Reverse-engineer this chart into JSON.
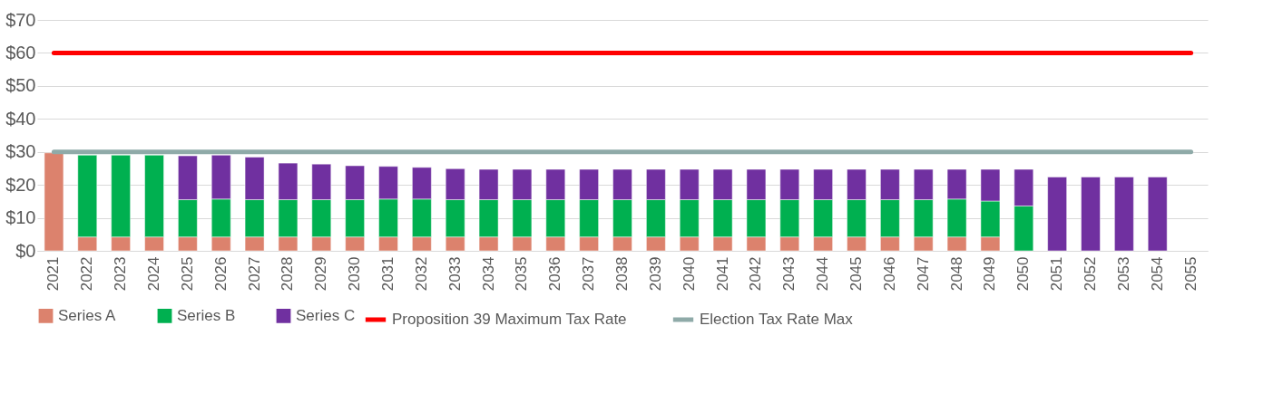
{
  "chart_data": {
    "type": "bar",
    "stacked": true,
    "categories": [
      "2021",
      "2022",
      "2023",
      "2024",
      "2025",
      "2026",
      "2027",
      "2028",
      "2029",
      "2030",
      "2031",
      "2032",
      "2033",
      "2034",
      "2035",
      "2036",
      "2037",
      "2038",
      "2039",
      "2040",
      "2041",
      "2042",
      "2043",
      "2044",
      "2045",
      "2046",
      "2047",
      "2048",
      "2049",
      "2050",
      "2051",
      "2052",
      "2053",
      "2054",
      "2055"
    ],
    "series": [
      {
        "name": "Series A",
        "color": "#dc826d",
        "values": [
          29.7,
          4.2,
          4.2,
          4.2,
          4.2,
          4.2,
          4.2,
          4.2,
          4.2,
          4.2,
          4.2,
          4.2,
          4.2,
          4.2,
          4.2,
          4.2,
          4.2,
          4.2,
          4.2,
          4.2,
          4.2,
          4.2,
          4.2,
          4.2,
          4.2,
          4.2,
          4.2,
          4.2,
          4.2,
          null,
          null,
          null,
          null,
          null,
          null
        ]
      },
      {
        "name": "Series B",
        "color": "#00b050",
        "values": [
          null,
          24.8,
          24.8,
          24.8,
          11.3,
          11.5,
          11.3,
          11.3,
          11.3,
          11.3,
          11.5,
          11.5,
          11.3,
          11.3,
          11.3,
          11.3,
          11.3,
          11.3,
          11.3,
          11.3,
          11.3,
          11.3,
          11.3,
          11.3,
          11.3,
          11.3,
          11.3,
          11.5,
          10.9,
          13.6,
          null,
          null,
          null,
          null,
          null
        ]
      },
      {
        "name": "Series C",
        "color": "#7030a0",
        "values": [
          null,
          null,
          null,
          null,
          13.3,
          13.3,
          12.9,
          11.1,
          10.8,
          10.3,
          9.9,
          9.6,
          9.4,
          9.2,
          9.2,
          9.2,
          9.2,
          9.2,
          9.2,
          9.2,
          9.2,
          9.2,
          9.2,
          9.2,
          9.2,
          9.2,
          9.2,
          9.0,
          9.6,
          11.1,
          22.4,
          22.4,
          22.4,
          22.4,
          null
        ]
      },
      {
        "name": "Proposition 39 Maximum Tax Rate",
        "type": "line",
        "color": "#ff0000",
        "values": [
          60,
          60,
          60,
          60,
          60,
          60,
          60,
          60,
          60,
          60,
          60,
          60,
          60,
          60,
          60,
          60,
          60,
          60,
          60,
          60,
          60,
          60,
          60,
          60,
          60,
          60,
          60,
          60,
          60,
          60,
          60,
          60,
          60,
          60,
          60
        ]
      },
      {
        "name": "Election Tax Rate Max",
        "type": "line",
        "color": "#8faaa8",
        "values": [
          30,
          30,
          30,
          30,
          30,
          30,
          30,
          30,
          30,
          30,
          30,
          30,
          30,
          30,
          30,
          30,
          30,
          30,
          30,
          30,
          30,
          30,
          30,
          30,
          30,
          30,
          30,
          30,
          30,
          30,
          30,
          30,
          30,
          30,
          30
        ]
      }
    ],
    "ylim": [
      0,
      70
    ],
    "yticks": [
      {
        "value": 0,
        "label": "$0"
      },
      {
        "value": 10,
        "label": "$10"
      },
      {
        "value": 20,
        "label": "$20"
      },
      {
        "value": 30,
        "label": "$30"
      },
      {
        "value": 40,
        "label": "$40"
      },
      {
        "value": 50,
        "label": "$50"
      },
      {
        "value": 60,
        "label": "$60"
      },
      {
        "value": 70,
        "label": "$70"
      }
    ],
    "grid": "y",
    "legend": "bottom"
  }
}
